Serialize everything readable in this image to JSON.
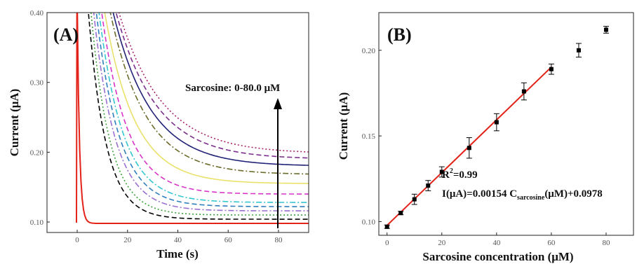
{
  "chart_data": [
    {
      "type": "line",
      "panel_label": "(A)",
      "xlabel": "Time (s)",
      "ylabel": "Current (μA)",
      "xlim": [
        -12,
        92
      ],
      "ylim": [
        0.085,
        0.4
      ],
      "xticks": [
        0,
        20,
        40,
        60,
        80
      ],
      "yticks": [
        0.1,
        0.2,
        0.3,
        0.4
      ],
      "annotation": "Sarcosine: 0-80.0 μM",
      "series": [
        {
          "color": "#e32219",
          "dash": "solid",
          "decay_start_x": 0,
          "y_at_0": 0.4,
          "y_final": 0.098,
          "tau": 0.9
        },
        {
          "color": "#000000",
          "dash": "dash",
          "decay_start_x": 4,
          "y_at_0": 0.4,
          "y_final": 0.104,
          "tau": 7
        },
        {
          "color": "#3aa13a",
          "dash": "dot",
          "decay_start_x": 5,
          "y_at_0": 0.4,
          "y_final": 0.11,
          "tau": 7.5
        },
        {
          "color": "#9a6fd0",
          "dash": "dashdot",
          "decay_start_x": 6,
          "y_at_0": 0.4,
          "y_final": 0.116,
          "tau": 8.5
        },
        {
          "color": "#2f7fbd",
          "dash": "dash",
          "decay_start_x": 7,
          "y_at_0": 0.4,
          "y_final": 0.122,
          "tau": 9
        },
        {
          "color": "#34c7cf",
          "dash": "dashdot",
          "decay_start_x": 8,
          "y_at_0": 0.4,
          "y_final": 0.128,
          "tau": 9.5
        },
        {
          "color": "#d733c8",
          "dash": "dash",
          "decay_start_x": 9,
          "y_at_0": 0.4,
          "y_final": 0.14,
          "tau": 10
        },
        {
          "color": "#e9e16a",
          "dash": "solid",
          "decay_start_x": 10,
          "y_at_0": 0.4,
          "y_final": 0.155,
          "tau": 12
        },
        {
          "color": "#6c6b2b",
          "dash": "dashdot",
          "decay_start_x": 12,
          "y_at_0": 0.4,
          "y_final": 0.168,
          "tau": 14
        },
        {
          "color": "#222277",
          "dash": "solid",
          "decay_start_x": 13,
          "y_at_0": 0.4,
          "y_final": 0.18,
          "tau": 15
        },
        {
          "color": "#7b2d8b",
          "dash": "dash",
          "decay_start_x": 14,
          "y_at_0": 0.4,
          "y_final": 0.19,
          "tau": 16
        },
        {
          "color": "#a8236a",
          "dash": "dot",
          "decay_start_x": 15,
          "y_at_0": 0.4,
          "y_final": 0.198,
          "tau": 17
        }
      ]
    },
    {
      "type": "scatter",
      "panel_label": "(B)",
      "xlabel": "Sarcosine concentration (μM)",
      "ylabel": "Current (μA)",
      "xlim": [
        -3,
        90
      ],
      "ylim": [
        0.092,
        0.222
      ],
      "xticks": [
        0,
        20,
        40,
        60,
        80
      ],
      "yticks": [
        0.1,
        0.15,
        0.2
      ],
      "points": [
        {
          "x": 0,
          "y": 0.097,
          "err": 0.001
        },
        {
          "x": 5,
          "y": 0.105,
          "err": 0.001
        },
        {
          "x": 10,
          "y": 0.113,
          "err": 0.003
        },
        {
          "x": 15,
          "y": 0.121,
          "err": 0.003
        },
        {
          "x": 20,
          "y": 0.129,
          "err": 0.003
        },
        {
          "x": 30,
          "y": 0.143,
          "err": 0.006
        },
        {
          "x": 40,
          "y": 0.158,
          "err": 0.005
        },
        {
          "x": 50,
          "y": 0.176,
          "err": 0.005
        },
        {
          "x": 60,
          "y": 0.189,
          "err": 0.003
        },
        {
          "x": 70,
          "y": 0.2,
          "err": 0.004
        },
        {
          "x": 80,
          "y": 0.212,
          "err": 0.002
        }
      ],
      "fit": {
        "slope": 0.00154,
        "intercept": 0.0978,
        "x_range": [
          0,
          60
        ],
        "color": "#e32219"
      },
      "r2_text": {
        "base": "R",
        "sup": "2",
        "rest": "=0.99"
      },
      "equation_text": {
        "pre": "I(μA)=0.00154 C",
        "sub": "sarcosine",
        "post": "(μM)+0.0978"
      }
    }
  ]
}
